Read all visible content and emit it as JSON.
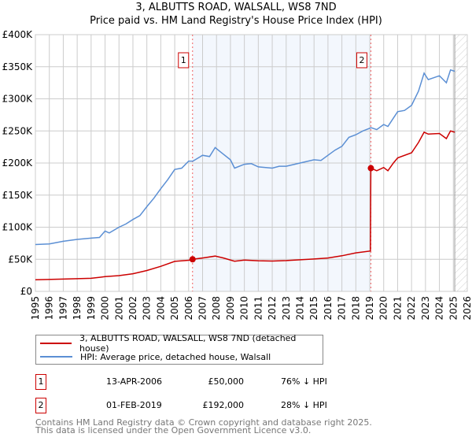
{
  "chart_data": {
    "type": "line",
    "title": "3, ALBUTTS ROAD, WALSALL, WS8 7ND",
    "subtitle": "Price paid vs. HM Land Registry's House Price Index (HPI)",
    "xlabel": "",
    "ylabel": "",
    "xlim": [
      1995,
      2026
    ],
    "ylim": [
      0,
      400000
    ],
    "yticks": [
      0,
      50000,
      100000,
      150000,
      200000,
      250000,
      300000,
      350000,
      400000
    ],
    "ytick_labels": [
      "£0",
      "£50K",
      "£100K",
      "£150K",
      "£200K",
      "£250K",
      "£300K",
      "£350K",
      "£400K"
    ],
    "xticks": [
      1995,
      1996,
      1997,
      1998,
      1999,
      2000,
      2001,
      2002,
      2003,
      2004,
      2005,
      2006,
      2007,
      2008,
      2009,
      2010,
      2011,
      2012,
      2013,
      2014,
      2015,
      2016,
      2017,
      2018,
      2019,
      2020,
      2021,
      2022,
      2023,
      2024,
      2025,
      2026
    ],
    "grid": true,
    "series": [
      {
        "name": "3, ALBUTTS ROAD, WALSALL, WS8 7ND (detached house)",
        "color": "#cc0000",
        "x": [
          1995,
          1997,
          1999,
          2000,
          2001,
          2002,
          2003,
          2004,
          2005,
          2006,
          2006.28,
          2007,
          2007.9,
          2008.5,
          2009.3,
          2010,
          2011,
          2012,
          2013,
          2014,
          2015,
          2016,
          2017,
          2018,
          2019.05,
          2019.08,
          2019.5,
          2020,
          2020.3,
          2020.7,
          2021,
          2022,
          2022.5,
          2022.9,
          2023.2,
          2024,
          2024.5,
          2024.8,
          2025.1
        ],
        "y": [
          18000,
          19200,
          20400,
          23000,
          24600,
          27500,
          32500,
          39000,
          46700,
          48500,
          50000,
          52000,
          55000,
          52000,
          47000,
          48700,
          47700,
          47200,
          48000,
          49200,
          50400,
          52000,
          55500,
          60000,
          63000,
          192000,
          188000,
          193000,
          188000,
          200000,
          208000,
          216000,
          232000,
          248000,
          245000,
          246000,
          238000,
          250000,
          248000
        ]
      },
      {
        "name": "HPI: Average price, detached house, Walsall",
        "color": "#5b8fd4",
        "x": [
          1995,
          1996,
          1997,
          1998,
          1999,
          1999.6,
          2000,
          2000.3,
          2001,
          2001.5,
          2002,
          2002.5,
          2003,
          2003.5,
          2004,
          2004.5,
          2005,
          2005.5,
          2006,
          2006.3,
          2007,
          2007.5,
          2007.9,
          2008.3,
          2009,
          2009.3,
          2010,
          2010.5,
          2011,
          2012,
          2012.5,
          2013,
          2014,
          2015,
          2015.5,
          2016,
          2016.5,
          2017,
          2017.5,
          2018,
          2018.5,
          2019.1,
          2019.5,
          2020,
          2020.3,
          2020.7,
          2021,
          2021.5,
          2022,
          2022.5,
          2022.9,
          2023.2,
          2024,
          2024.5,
          2024.8,
          2025.1
        ],
        "y": [
          73000,
          74000,
          78000,
          81000,
          83000,
          84000,
          94000,
          91000,
          100000,
          105000,
          112000,
          118000,
          132000,
          145000,
          160000,
          174000,
          190000,
          192000,
          203000,
          203000,
          212000,
          210000,
          224000,
          217000,
          205000,
          192000,
          198000,
          199000,
          194000,
          192000,
          195000,
          195000,
          200000,
          205000,
          204000,
          212000,
          220000,
          226000,
          240000,
          244000,
          250000,
          255000,
          252000,
          260000,
          257000,
          270000,
          280000,
          282000,
          290000,
          312000,
          340000,
          330000,
          336000,
          325000,
          345000,
          343000
        ]
      }
    ],
    "annotations": [
      {
        "label": "1",
        "x": 2006.28,
        "y": 50000
      },
      {
        "label": "2",
        "x": 2019.08,
        "y": 192000
      }
    ],
    "shaded_range": [
      2006.28,
      2019.08
    ],
    "hatched_from": 2025.1,
    "legend_position": "below"
  },
  "header": {
    "title": "3, ALBUTTS ROAD, WALSALL, WS8 7ND",
    "subtitle": "Price paid vs. HM Land Registry's House Price Index (HPI)"
  },
  "legend": [
    "3, ALBUTTS ROAD, WALSALL, WS8 7ND (detached house)",
    "HPI: Average price, detached house, Walsall"
  ],
  "transactions": [
    {
      "num": "1",
      "date": "13-APR-2006",
      "price": "£50,000",
      "hpi": "76% ↓ HPI"
    },
    {
      "num": "2",
      "date": "01-FEB-2019",
      "price": "£192,000",
      "hpi": "28% ↓ HPI"
    }
  ],
  "footer": [
    "Contains HM Land Registry data © Crown copyright and database right 2025.",
    "This data is licensed under the Open Government Licence v3.0."
  ]
}
